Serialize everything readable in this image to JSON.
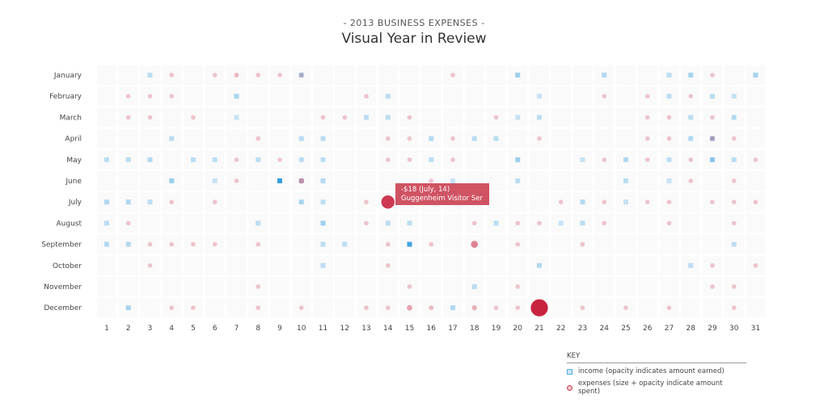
{
  "header": {
    "kicker": "- 2013 BUSINESS EXPENSES -",
    "title": "Visual Year in Review"
  },
  "tooltip": {
    "line1": "-$18  (July, 14)",
    "line2": "Guggenheim Visitor Ser"
  },
  "key": {
    "title": "KEY",
    "income_label": "income (opacity indicates amount earned)",
    "expense_label": "expenses (size + opacity indicate amount spent)"
  },
  "colors": {
    "income": "#2b9be0",
    "expense": "#c8243f",
    "cell": "#fafafa"
  },
  "chart_data": {
    "type": "scatter",
    "title": "Visual Year in Review",
    "months": [
      "January",
      "February",
      "March",
      "April",
      "May",
      "June",
      "July",
      "August",
      "September",
      "October",
      "November",
      "December"
    ],
    "days": [
      1,
      2,
      3,
      4,
      5,
      6,
      7,
      8,
      9,
      10,
      11,
      12,
      13,
      14,
      15,
      16,
      17,
      18,
      19,
      20,
      21,
      22,
      23,
      24,
      25,
      26,
      27,
      28,
      29,
      30,
      31
    ],
    "income": [
      {
        "m": 1,
        "d": 3,
        "v": 0.3
      },
      {
        "m": 1,
        "d": 10,
        "v": 0.4
      },
      {
        "m": 1,
        "d": 20,
        "v": 0.45
      },
      {
        "m": 1,
        "d": 24,
        "v": 0.35
      },
      {
        "m": 1,
        "d": 27,
        "v": 0.3
      },
      {
        "m": 1,
        "d": 28,
        "v": 0.4
      },
      {
        "m": 1,
        "d": 31,
        "v": 0.4
      },
      {
        "m": 2,
        "d": 7,
        "v": 0.4
      },
      {
        "m": 2,
        "d": 14,
        "v": 0.3
      },
      {
        "m": 2,
        "d": 21,
        "v": 0.25
      },
      {
        "m": 2,
        "d": 27,
        "v": 0.3
      },
      {
        "m": 2,
        "d": 29,
        "v": 0.3
      },
      {
        "m": 2,
        "d": 30,
        "v": 0.25
      },
      {
        "m": 3,
        "d": 7,
        "v": 0.25
      },
      {
        "m": 3,
        "d": 13,
        "v": 0.3
      },
      {
        "m": 3,
        "d": 14,
        "v": 0.3
      },
      {
        "m": 3,
        "d": 20,
        "v": 0.25
      },
      {
        "m": 3,
        "d": 21,
        "v": 0.3
      },
      {
        "m": 3,
        "d": 28,
        "v": 0.3
      },
      {
        "m": 3,
        "d": 30,
        "v": 0.35
      },
      {
        "m": 4,
        "d": 4,
        "v": 0.3
      },
      {
        "m": 4,
        "d": 10,
        "v": 0.3
      },
      {
        "m": 4,
        "d": 11,
        "v": 0.3
      },
      {
        "m": 4,
        "d": 16,
        "v": 0.35
      },
      {
        "m": 4,
        "d": 18,
        "v": 0.3
      },
      {
        "m": 4,
        "d": 19,
        "v": 0.3
      },
      {
        "m": 4,
        "d": 28,
        "v": 0.35
      },
      {
        "m": 4,
        "d": 29,
        "v": 0.45
      },
      {
        "m": 5,
        "d": 1,
        "v": 0.3
      },
      {
        "m": 5,
        "d": 2,
        "v": 0.3
      },
      {
        "m": 5,
        "d": 3,
        "v": 0.35
      },
      {
        "m": 5,
        "d": 5,
        "v": 0.3
      },
      {
        "m": 5,
        "d": 6,
        "v": 0.3
      },
      {
        "m": 5,
        "d": 8,
        "v": 0.3
      },
      {
        "m": 5,
        "d": 10,
        "v": 0.3
      },
      {
        "m": 5,
        "d": 11,
        "v": 0.3
      },
      {
        "m": 5,
        "d": 16,
        "v": 0.3
      },
      {
        "m": 5,
        "d": 20,
        "v": 0.45
      },
      {
        "m": 5,
        "d": 23,
        "v": 0.25
      },
      {
        "m": 5,
        "d": 25,
        "v": 0.35
      },
      {
        "m": 5,
        "d": 27,
        "v": 0.3
      },
      {
        "m": 5,
        "d": 29,
        "v": 0.55
      },
      {
        "m": 5,
        "d": 30,
        "v": 0.3
      },
      {
        "m": 6,
        "d": 4,
        "v": 0.45
      },
      {
        "m": 6,
        "d": 6,
        "v": 0.25
      },
      {
        "m": 6,
        "d": 9,
        "v": 0.95
      },
      {
        "m": 6,
        "d": 10,
        "v": 0.35
      },
      {
        "m": 6,
        "d": 11,
        "v": 0.35
      },
      {
        "m": 6,
        "d": 17,
        "v": 0.25
      },
      {
        "m": 6,
        "d": 20,
        "v": 0.3
      },
      {
        "m": 6,
        "d": 25,
        "v": 0.3
      },
      {
        "m": 6,
        "d": 27,
        "v": 0.25
      },
      {
        "m": 7,
        "d": 1,
        "v": 0.35
      },
      {
        "m": 7,
        "d": 2,
        "v": 0.35
      },
      {
        "m": 7,
        "d": 3,
        "v": 0.3
      },
      {
        "m": 7,
        "d": 10,
        "v": 0.4
      },
      {
        "m": 7,
        "d": 11,
        "v": 0.3
      },
      {
        "m": 7,
        "d": 23,
        "v": 0.35
      },
      {
        "m": 7,
        "d": 25,
        "v": 0.25
      },
      {
        "m": 8,
        "d": 1,
        "v": 0.3
      },
      {
        "m": 8,
        "d": 8,
        "v": 0.3
      },
      {
        "m": 8,
        "d": 11,
        "v": 0.45
      },
      {
        "m": 8,
        "d": 14,
        "v": 0.3
      },
      {
        "m": 8,
        "d": 15,
        "v": 0.3
      },
      {
        "m": 8,
        "d": 19,
        "v": 0.3
      },
      {
        "m": 8,
        "d": 22,
        "v": 0.25
      },
      {
        "m": 8,
        "d": 23,
        "v": 0.3
      },
      {
        "m": 9,
        "d": 1,
        "v": 0.35
      },
      {
        "m": 9,
        "d": 2,
        "v": 0.35
      },
      {
        "m": 9,
        "d": 11,
        "v": 0.3
      },
      {
        "m": 9,
        "d": 12,
        "v": 0.3
      },
      {
        "m": 9,
        "d": 15,
        "v": 0.9
      },
      {
        "m": 9,
        "d": 30,
        "v": 0.3
      },
      {
        "m": 10,
        "d": 11,
        "v": 0.3
      },
      {
        "m": 10,
        "d": 21,
        "v": 0.35
      },
      {
        "m": 10,
        "d": 28,
        "v": 0.3
      },
      {
        "m": 11,
        "d": 18,
        "v": 0.3
      },
      {
        "m": 12,
        "d": 2,
        "v": 0.4
      },
      {
        "m": 12,
        "d": 17,
        "v": 0.35
      }
    ],
    "expenses": [
      {
        "m": 1,
        "d": 4,
        "v": 0.2
      },
      {
        "m": 1,
        "d": 6,
        "v": 0.2
      },
      {
        "m": 1,
        "d": 7,
        "v": 0.25
      },
      {
        "m": 1,
        "d": 8,
        "v": 0.2
      },
      {
        "m": 1,
        "d": 9,
        "v": 0.2
      },
      {
        "m": 1,
        "d": 10,
        "v": 0.2
      },
      {
        "m": 1,
        "d": 17,
        "v": 0.2
      },
      {
        "m": 1,
        "d": 29,
        "v": 0.2
      },
      {
        "m": 2,
        "d": 2,
        "v": 0.2
      },
      {
        "m": 2,
        "d": 3,
        "v": 0.2
      },
      {
        "m": 2,
        "d": 4,
        "v": 0.2
      },
      {
        "m": 2,
        "d": 13,
        "v": 0.2
      },
      {
        "m": 2,
        "d": 24,
        "v": 0.2
      },
      {
        "m": 2,
        "d": 26,
        "v": 0.2
      },
      {
        "m": 2,
        "d": 28,
        "v": 0.2
      },
      {
        "m": 3,
        "d": 2,
        "v": 0.2
      },
      {
        "m": 3,
        "d": 3,
        "v": 0.2
      },
      {
        "m": 3,
        "d": 5,
        "v": 0.2
      },
      {
        "m": 3,
        "d": 11,
        "v": 0.2
      },
      {
        "m": 3,
        "d": 12,
        "v": 0.2
      },
      {
        "m": 3,
        "d": 15,
        "v": 0.2
      },
      {
        "m": 3,
        "d": 19,
        "v": 0.2
      },
      {
        "m": 3,
        "d": 26,
        "v": 0.2
      },
      {
        "m": 3,
        "d": 27,
        "v": 0.2
      },
      {
        "m": 3,
        "d": 29,
        "v": 0.2
      },
      {
        "m": 4,
        "d": 8,
        "v": 0.2
      },
      {
        "m": 4,
        "d": 14,
        "v": 0.2
      },
      {
        "m": 4,
        "d": 15,
        "v": 0.2
      },
      {
        "m": 4,
        "d": 17,
        "v": 0.2
      },
      {
        "m": 4,
        "d": 21,
        "v": 0.2
      },
      {
        "m": 4,
        "d": 26,
        "v": 0.2
      },
      {
        "m": 4,
        "d": 27,
        "v": 0.2
      },
      {
        "m": 4,
        "d": 29,
        "v": 0.25
      },
      {
        "m": 4,
        "d": 30,
        "v": 0.2
      },
      {
        "m": 5,
        "d": 7,
        "v": 0.2
      },
      {
        "m": 5,
        "d": 9,
        "v": 0.2
      },
      {
        "m": 5,
        "d": 14,
        "v": 0.2
      },
      {
        "m": 5,
        "d": 15,
        "v": 0.2
      },
      {
        "m": 5,
        "d": 17,
        "v": 0.2
      },
      {
        "m": 5,
        "d": 24,
        "v": 0.2
      },
      {
        "m": 5,
        "d": 26,
        "v": 0.2
      },
      {
        "m": 5,
        "d": 28,
        "v": 0.2
      },
      {
        "m": 5,
        "d": 31,
        "v": 0.2
      },
      {
        "m": 6,
        "d": 7,
        "v": 0.2
      },
      {
        "m": 6,
        "d": 10,
        "v": 0.35
      },
      {
        "m": 6,
        "d": 16,
        "v": 0.2
      },
      {
        "m": 6,
        "d": 28,
        "v": 0.2
      },
      {
        "m": 6,
        "d": 30,
        "v": 0.2
      },
      {
        "m": 7,
        "d": 4,
        "v": 0.2
      },
      {
        "m": 7,
        "d": 6,
        "v": 0.2
      },
      {
        "m": 7,
        "d": 13,
        "v": 0.2
      },
      {
        "m": 7,
        "d": 14,
        "v": 0.85
      },
      {
        "m": 7,
        "d": 22,
        "v": 0.2
      },
      {
        "m": 7,
        "d": 24,
        "v": 0.2
      },
      {
        "m": 7,
        "d": 26,
        "v": 0.2
      },
      {
        "m": 7,
        "d": 27,
        "v": 0.2
      },
      {
        "m": 7,
        "d": 29,
        "v": 0.2
      },
      {
        "m": 7,
        "d": 30,
        "v": 0.2
      },
      {
        "m": 7,
        "d": 31,
        "v": 0.2
      },
      {
        "m": 8,
        "d": 2,
        "v": 0.2
      },
      {
        "m": 8,
        "d": 13,
        "v": 0.2
      },
      {
        "m": 8,
        "d": 18,
        "v": 0.2
      },
      {
        "m": 8,
        "d": 20,
        "v": 0.2
      },
      {
        "m": 8,
        "d": 21,
        "v": 0.2
      },
      {
        "m": 8,
        "d": 24,
        "v": 0.2
      },
      {
        "m": 8,
        "d": 27,
        "v": 0.2
      },
      {
        "m": 8,
        "d": 30,
        "v": 0.2
      },
      {
        "m": 9,
        "d": 3,
        "v": 0.2
      },
      {
        "m": 9,
        "d": 4,
        "v": 0.2
      },
      {
        "m": 9,
        "d": 5,
        "v": 0.2
      },
      {
        "m": 9,
        "d": 6,
        "v": 0.2
      },
      {
        "m": 9,
        "d": 8,
        "v": 0.2
      },
      {
        "m": 9,
        "d": 14,
        "v": 0.2
      },
      {
        "m": 9,
        "d": 16,
        "v": 0.2
      },
      {
        "m": 9,
        "d": 18,
        "v": 0.5
      },
      {
        "m": 9,
        "d": 20,
        "v": 0.2
      },
      {
        "m": 9,
        "d": 23,
        "v": 0.2
      },
      {
        "m": 10,
        "d": 3,
        "v": 0.2
      },
      {
        "m": 10,
        "d": 14,
        "v": 0.2
      },
      {
        "m": 10,
        "d": 29,
        "v": 0.2
      },
      {
        "m": 10,
        "d": 31,
        "v": 0.2
      },
      {
        "m": 11,
        "d": 8,
        "v": 0.2
      },
      {
        "m": 11,
        "d": 15,
        "v": 0.2
      },
      {
        "m": 11,
        "d": 20,
        "v": 0.2
      },
      {
        "m": 11,
        "d": 29,
        "v": 0.2
      },
      {
        "m": 11,
        "d": 30,
        "v": 0.2
      },
      {
        "m": 12,
        "d": 4,
        "v": 0.2
      },
      {
        "m": 12,
        "d": 5,
        "v": 0.2
      },
      {
        "m": 12,
        "d": 8,
        "v": 0.2
      },
      {
        "m": 12,
        "d": 10,
        "v": 0.2
      },
      {
        "m": 12,
        "d": 13,
        "v": 0.2
      },
      {
        "m": 12,
        "d": 14,
        "v": 0.2
      },
      {
        "m": 12,
        "d": 15,
        "v": 0.35
      },
      {
        "m": 12,
        "d": 16,
        "v": 0.25
      },
      {
        "m": 12,
        "d": 18,
        "v": 0.3
      },
      {
        "m": 12,
        "d": 19,
        "v": 0.2
      },
      {
        "m": 12,
        "d": 20,
        "v": 0.2
      },
      {
        "m": 12,
        "d": 21,
        "v": 1.0
      },
      {
        "m": 12,
        "d": 23,
        "v": 0.2
      },
      {
        "m": 12,
        "d": 25,
        "v": 0.2
      },
      {
        "m": 12,
        "d": 27,
        "v": 0.2
      },
      {
        "m": 12,
        "d": 30,
        "v": 0.2
      }
    ],
    "legend": "bottom-right",
    "grid": true
  }
}
